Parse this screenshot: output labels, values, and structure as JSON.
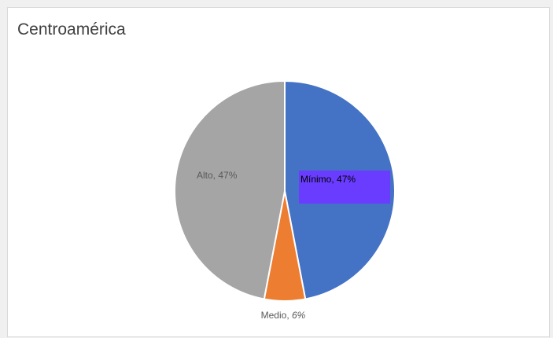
{
  "chart_data": {
    "type": "pie",
    "title": "Centroamérica",
    "slices": [
      {
        "label": "Mínimo",
        "value": 47,
        "value_label": "47%",
        "color": "#4472c4"
      },
      {
        "label": "Medio",
        "value": 6,
        "value_label": "6%",
        "color": "#ed7d31"
      },
      {
        "label": "Alto",
        "value": 47,
        "value_label": "47%",
        "color": "#a5a5a5"
      }
    ],
    "highlight_color": "#6a3cff",
    "start_angle_deg": 0,
    "direction": "clockwise",
    "legend": "none"
  }
}
